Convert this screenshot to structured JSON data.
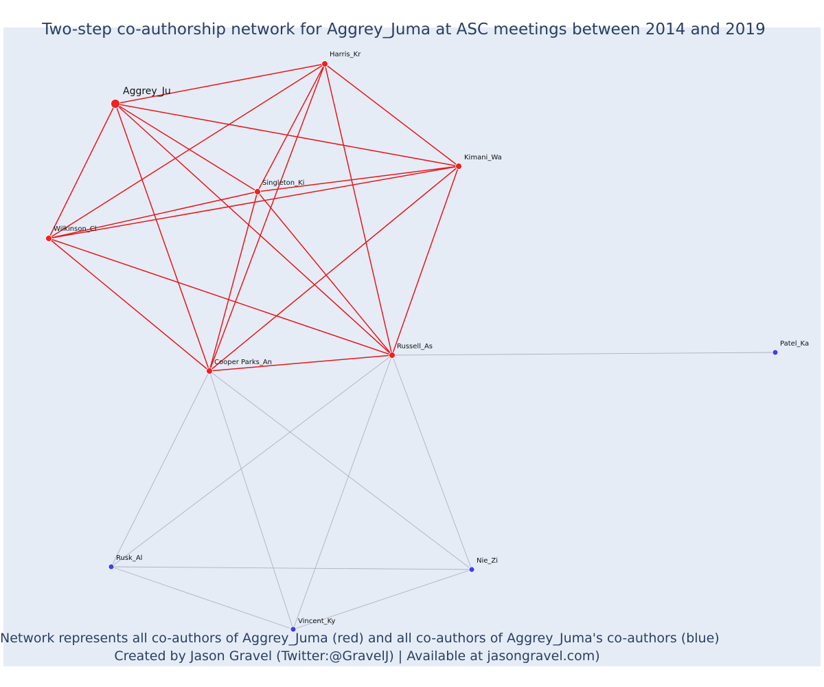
{
  "title": "Two-step co-authorship network for Aggrey_Juma at ASC meetings between 2014 and 2019",
  "caption_line1": "Network represents all co-authors of Aggrey_Juma (red) and all co-authors of Aggrey_Juma's co-authors (blue)",
  "caption_line2": "Created by Jason Gravel (Twitter:@GravelJ) | Available at jasongravel.com)",
  "colors": {
    "background": "#e5ecf6",
    "red_node": "#ee2222",
    "red_edge": "#e8161a",
    "blue_node": "#3f3ff0",
    "grey_edge": "#b0b0c0",
    "text": "#2a3f5f"
  },
  "nodes": [
    {
      "id": "aggrey",
      "label": "Aggrey_Ju",
      "group": "focal"
    },
    {
      "id": "harris",
      "label": "Harris_Kr",
      "group": "coauthor"
    },
    {
      "id": "kimani",
      "label": "Kimani_Wa",
      "group": "coauthor"
    },
    {
      "id": "singleton",
      "label": "Singleton_Ki",
      "group": "coauthor"
    },
    {
      "id": "wilkinson",
      "label": "Wilkinson_Cl",
      "group": "coauthor"
    },
    {
      "id": "russell",
      "label": "Russell_As",
      "group": "coauthor"
    },
    {
      "id": "cooper",
      "label": "Cooper Parks_An",
      "group": "coauthor"
    },
    {
      "id": "patel",
      "label": "Patel_Ka",
      "group": "second"
    },
    {
      "id": "rusk",
      "label": "Rusk_Al",
      "group": "second"
    },
    {
      "id": "nie",
      "label": "Nie_Zi",
      "group": "second"
    },
    {
      "id": "vincent",
      "label": "Vincent_Ky",
      "group": "second"
    }
  ],
  "edges": [
    [
      "aggrey",
      "harris"
    ],
    [
      "aggrey",
      "kimani"
    ],
    [
      "aggrey",
      "singleton"
    ],
    [
      "aggrey",
      "wilkinson"
    ],
    [
      "aggrey",
      "russell"
    ],
    [
      "aggrey",
      "cooper"
    ],
    [
      "harris",
      "kimani"
    ],
    [
      "harris",
      "singleton"
    ],
    [
      "harris",
      "wilkinson"
    ],
    [
      "harris",
      "russell"
    ],
    [
      "harris",
      "cooper"
    ],
    [
      "kimani",
      "singleton"
    ],
    [
      "kimani",
      "wilkinson"
    ],
    [
      "kimani",
      "russell"
    ],
    [
      "kimani",
      "cooper"
    ],
    [
      "singleton",
      "wilkinson"
    ],
    [
      "singleton",
      "russell"
    ],
    [
      "singleton",
      "cooper"
    ],
    [
      "wilkinson",
      "russell"
    ],
    [
      "wilkinson",
      "cooper"
    ],
    [
      "russell",
      "cooper"
    ],
    [
      "russell",
      "patel"
    ],
    [
      "russell",
      "rusk"
    ],
    [
      "russell",
      "nie"
    ],
    [
      "russell",
      "vincent"
    ],
    [
      "cooper",
      "rusk"
    ],
    [
      "cooper",
      "nie"
    ],
    [
      "cooper",
      "vincent"
    ],
    [
      "rusk",
      "nie"
    ],
    [
      "rusk",
      "vincent"
    ],
    [
      "nie",
      "vincent"
    ]
  ]
}
